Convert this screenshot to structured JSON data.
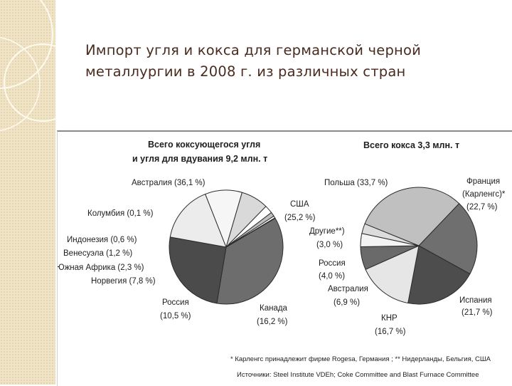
{
  "slide": {
    "title_line1": "Импорт угля и кокса для германской черной",
    "title_line2": "металлургии в 2008 г. из различных стран"
  },
  "chart_data": [
    {
      "type": "pie",
      "title_line1": "Всего коксующегося угля",
      "title_line2": "и угля для вдувания 9,2 млн. т",
      "slices": [
        {
          "name": "Австралия",
          "value": 36.1,
          "label": "Австралия (36,1 %)",
          "color": "#6d6d6d"
        },
        {
          "name": "США",
          "value": 25.2,
          "label_line1": "США",
          "label_line2": "(25,2 %)",
          "color": "#4b4b4b"
        },
        {
          "name": "Канада",
          "value": 16.2,
          "label_line1": "Канада",
          "label_line2": "(16,2 %)",
          "color": "#ececec"
        },
        {
          "name": "Россия",
          "value": 10.5,
          "label_line1": "Россия",
          "label_line2": "(10,5 %)",
          "color": "#f6f6f6"
        },
        {
          "name": "Норвегия",
          "value": 7.8,
          "label": "Норвегия (7,8 %)",
          "color": "#d9d9d9"
        },
        {
          "name": "Южная Африка",
          "value": 2.3,
          "label": "Южная Африка (2,3 %)",
          "color": "#ffffff"
        },
        {
          "name": "Венесуэла",
          "value": 1.2,
          "label": "Венесуэла (1,2 %)",
          "color": "#bdbdbd"
        },
        {
          "name": "Индонезия",
          "value": 0.6,
          "label": "Индонезия (0,6 %)",
          "color": "#ffffff"
        },
        {
          "name": "Колумбия",
          "value": 0.1,
          "label": "Колумбия (0,1 %)",
          "color": "#ffffff"
        }
      ]
    },
    {
      "type": "pie",
      "title": "Всего кокса 3,3 млн. т",
      "slices": [
        {
          "name": "Франция (Карленгс)*",
          "value": 22.7,
          "label_line1": "Франция",
          "label_line2": "(Карленгс)*",
          "label_line3": "(22,7 %)",
          "color": "#6f6f6f"
        },
        {
          "name": "Испания",
          "value": 21.7,
          "label_line1": "Испания",
          "label_line2": "(21,7 %)",
          "color": "#4d4d4d"
        },
        {
          "name": "КНР",
          "value": 16.7,
          "label_line1": "КНР",
          "label_line2": "(16,7 %)",
          "color": "#e6e6e6"
        },
        {
          "name": "Австралия",
          "value": 6.9,
          "label_line1": "Австралия",
          "label_line2": "(6,9 %)",
          "color": "#6a6a6a"
        },
        {
          "name": "Россия",
          "value": 4.0,
          "label_line1": "Россия",
          "label_line2": "(4,0 %)",
          "color": "#f4f4f4"
        },
        {
          "name": "Другие**",
          "value": 3.0,
          "label_line1": "Другие**)",
          "label_line2": "(3,0 %)",
          "color": "#dcdcdc"
        },
        {
          "name": "Польша",
          "value": 33.7,
          "label": "Польша (33,7 %)",
          "color": "#c0c0c0"
        }
      ]
    }
  ],
  "footnotes": {
    "line1": "* Карленгс принадлежит фирме Rogesa, Германия ;   ** Нидерланды, Бельгия, США",
    "line2": "Источники: Steel Institute VDEh; Coke Committee and Blast Furnace Committee"
  },
  "colors": {
    "title_text": "#4a2b1f",
    "sidebar_bg": "#efe4c6",
    "slice_outline": "#2b2b2b"
  }
}
